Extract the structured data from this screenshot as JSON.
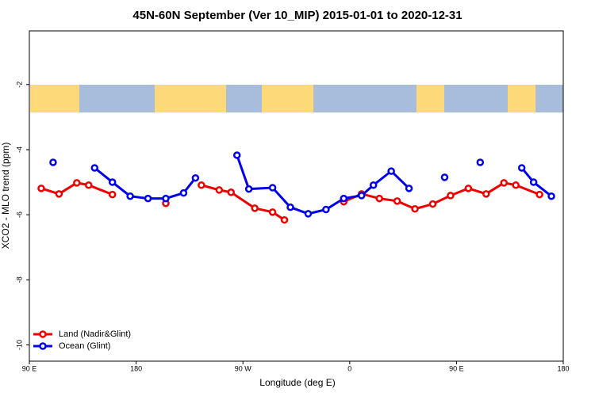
{
  "chart_data": {
    "type": "line",
    "title": "45N-60N September (Ver 10_MIP)   2015-01-01 to 2020-12-31",
    "xlabel": "Longitude (deg E)",
    "ylabel": "XCO2 - MLO trend (ppm)",
    "xlim": [
      90,
      540
    ],
    "xticks": [
      {
        "value": 90,
        "label": "90 E"
      },
      180,
      {
        "value": 270,
        "label": "90 W"
      },
      {
        "value": 360,
        "label": "0"
      },
      {
        "value": 450,
        "label": "90 E"
      },
      {
        "value": 540,
        "label": "180"
      }
    ],
    "ylim": [
      -10.5,
      -0.35
    ],
    "yticks": [
      -10,
      -8,
      -6,
      -4,
      -2
    ],
    "legend": "bottom-left",
    "series": [
      {
        "name": "Land (Nadir&Glint)",
        "color": "#ee0000",
        "x": [
          100,
          115,
          130,
          140,
          160,
          180,
          205,
          220,
          235,
          250,
          260,
          280,
          295,
          305,
          330,
          355,
          370,
          385,
          400,
          415,
          430,
          445,
          460,
          475,
          490,
          500,
          520
        ],
        "values": [
          -5.19,
          -5.36,
          -5.02,
          -5.09,
          -5.38,
          null,
          -5.65,
          null,
          -5.09,
          -5.24,
          -5.31,
          -5.8,
          -5.92,
          -6.16,
          null,
          -5.6,
          -5.36,
          -5.5,
          -5.58,
          -5.82,
          -5.67,
          -5.41,
          -5.19,
          -5.36,
          -5.02,
          -5.09,
          -5.38
        ]
      },
      {
        "name": "Ocean (Glint)",
        "color": "#0000ee",
        "x": [
          110,
          125,
          145,
          160,
          175,
          190,
          205,
          220,
          230,
          250,
          265,
          275,
          295,
          310,
          325,
          340,
          355,
          370,
          380,
          395,
          410,
          425,
          440,
          455,
          470,
          490,
          505,
          515,
          530
        ],
        "values": [
          -4.39,
          null,
          -4.56,
          -5.0,
          -5.43,
          -5.5,
          -5.5,
          -5.33,
          -4.87,
          null,
          -4.17,
          -5.21,
          -5.17,
          -5.77,
          -5.97,
          -5.84,
          -5.5,
          -5.41,
          -5.09,
          -4.66,
          -5.19,
          null,
          -4.85,
          null,
          -4.39,
          null,
          -4.56,
          -5.0,
          -5.43
        ]
      }
    ]
  }
}
